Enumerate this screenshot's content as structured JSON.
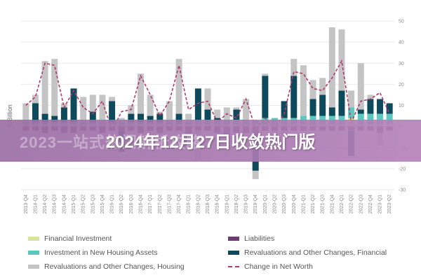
{
  "chart_data": {
    "type": "bar",
    "stacked": true,
    "ylabel": "€ Billion",
    "ylim": [
      -30,
      50
    ],
    "yticks": [
      50,
      40,
      30,
      20,
      10,
      0,
      -10,
      -20,
      -30
    ],
    "categories": [
      "2013-Q4",
      "2014-Q1",
      "2014-Q2",
      "2014-Q3",
      "2014-Q4",
      "2015-Q1",
      "2015-Q2",
      "2015-Q3",
      "2015-Q4",
      "2016-Q1",
      "2016-Q2",
      "2016-Q3",
      "2016-Q4",
      "2017-Q1",
      "2017-Q2",
      "2017-Q3",
      "2017-Q4",
      "2018-Q1",
      "2018-Q2",
      "2018-Q3",
      "2018-Q4",
      "2019-Q1",
      "2019-Q2",
      "2019-Q3",
      "2019-Q4",
      "2020-Q1",
      "2020-Q2",
      "2020-Q3",
      "2020-Q4",
      "2021-Q1",
      "2021-Q2",
      "2021-Q3",
      "2021-Q4",
      "2022-Q1",
      "2022-Q2",
      "2022-Q3",
      "2022-Q4",
      "2023-Q1",
      "2023-Q2"
    ],
    "series": [
      {
        "name": "Financial Investment",
        "color": "#d8e59a",
        "values": [
          1,
          1,
          1,
          1,
          1,
          1,
          1,
          1,
          1,
          1,
          1,
          1,
          1,
          1,
          1,
          1,
          1,
          1,
          1,
          1,
          1,
          1,
          1,
          1,
          1,
          1,
          1,
          1,
          1,
          1,
          1,
          1,
          1,
          1,
          4,
          1,
          1,
          1,
          1
        ]
      },
      {
        "name": "Liabilities",
        "color": "#6e3b72",
        "values": [
          -2,
          -2,
          -3,
          -2,
          -3,
          -3,
          -2,
          -2,
          -3,
          -2,
          -2,
          -2,
          -3,
          -2,
          -3,
          -2,
          -2,
          -3,
          -2,
          -2,
          -3,
          -3,
          -3,
          -3,
          -3,
          -2,
          -2,
          -2,
          -2,
          -2,
          -2,
          -2,
          -2,
          -2,
          -2,
          -2,
          -2,
          -3,
          -2
        ]
      },
      {
        "name": "Investment in New Housing Assets",
        "color": "#5cc8c0",
        "values": [
          1,
          1,
          1,
          1,
          1,
          1,
          1,
          1,
          1,
          1,
          1,
          1,
          1,
          1,
          1,
          1,
          1,
          1,
          2,
          2,
          2,
          2,
          2,
          2,
          2,
          3,
          3,
          3,
          3,
          4,
          4,
          4,
          4,
          4,
          5,
          5,
          5,
          5,
          5
        ]
      },
      {
        "name": "Revaluations and Other Changes, Financial",
        "color": "#0f4a5c",
        "values": [
          0,
          9,
          4,
          3,
          7,
          16,
          0,
          5,
          0,
          10,
          -10,
          4,
          4,
          3,
          4,
          0,
          4,
          -6,
          15,
          5,
          1,
          -1,
          5,
          0,
          -18,
          20,
          0,
          8,
          20,
          0,
          8,
          10,
          4,
          12,
          -12,
          2,
          7,
          7,
          5
        ]
      },
      {
        "name": "Revaluations and Other Changes, Housing",
        "color": "#c4c4c4",
        "values": [
          9,
          4,
          25,
          27,
          2,
          0,
          12,
          8,
          13,
          2,
          2,
          4,
          19,
          10,
          1,
          10,
          26,
          4,
          -14,
          10,
          4,
          6,
          1,
          10,
          -4,
          1,
          -1,
          -2,
          8,
          24,
          9,
          8,
          38,
          29,
          8,
          22,
          2,
          -6,
          0
        ]
      },
      {
        "name": "Change in Net Worth",
        "color": "#b23a6a",
        "type": "line",
        "values": [
          10,
          14,
          30,
          29,
          9,
          17,
          9,
          6,
          12,
          -2,
          7,
          8,
          24,
          15,
          5,
          12,
          29,
          8,
          11,
          12,
          2,
          6,
          4,
          13,
          -1,
          4,
          -1,
          6,
          26,
          25,
          18,
          17,
          23,
          31,
          2,
          12,
          13,
          16,
          6
        ]
      }
    ]
  },
  "legend": [
    {
      "label": "Financial Investment",
      "color": "#d8e59a"
    },
    {
      "label": "Liabilities",
      "color": "#6e3b72"
    },
    {
      "label": "Investment in New Housing Assets",
      "color": "#5cc8c0"
    },
    {
      "label": "Revaluations and Other Changes, Financial",
      "color": "#0f4a5c"
    },
    {
      "label": "Revaluations and Other Changes, Housing",
      "color": "#c4c4c4"
    },
    {
      "label": "Change in Net Worth",
      "color": "#b23a6a",
      "dashed": true
    }
  ],
  "overlay": {
    "headline": "2024年12月27日收敛热门版",
    "ghost_text": "2023一站式热门解析攻略"
  }
}
